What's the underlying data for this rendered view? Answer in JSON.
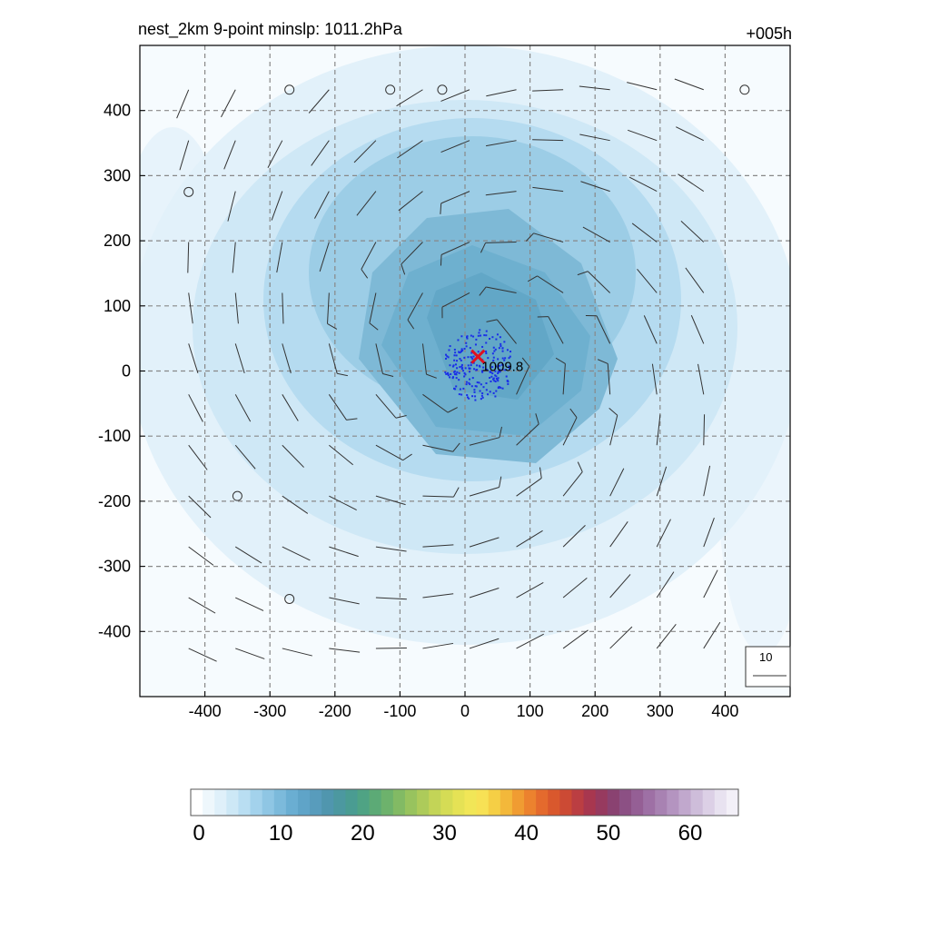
{
  "title_left": "nest_2km  9-point minslp: 1011.2hPa",
  "title_right": "+005h",
  "map": {
    "x_ticks": [
      -400,
      -300,
      -200,
      -100,
      0,
      100,
      200,
      300,
      400
    ],
    "y_ticks": [
      400,
      300,
      200,
      100,
      0,
      -100,
      -200,
      -300,
      -400
    ],
    "extent": [
      -500,
      500
    ],
    "center_marker": {
      "x": 20,
      "y": 22,
      "label": "1009.8",
      "color": "#e01020"
    },
    "contour_color": "#1a2ee8",
    "reference_vector_label": "10",
    "calm_points": [
      [
        -270,
        432
      ],
      [
        -115,
        432
      ],
      [
        -35,
        432
      ],
      [
        430,
        432
      ],
      [
        -425,
        275
      ],
      [
        -350,
        -192
      ],
      [
        -270,
        -350
      ]
    ]
  },
  "colorbar": {
    "tick_labels": [
      "0",
      "10",
      "20",
      "30",
      "40",
      "50",
      "60"
    ],
    "tick_values": [
      0,
      10,
      20,
      30,
      40,
      50,
      60
    ],
    "max": 67,
    "colors": [
      "#ffffff",
      "#eef7fc",
      "#dff0fa",
      "#cde8f6",
      "#b9def2",
      "#a3d2ec",
      "#8fc6e4",
      "#7cbadb",
      "#6aaed2",
      "#5fa4c8",
      "#589cbc",
      "#5096ae",
      "#4c98a0",
      "#4a9c92",
      "#4fa384",
      "#5caa76",
      "#6db26c",
      "#82ba64",
      "#98c35e",
      "#adcb5a",
      "#c3d457",
      "#d5dc55",
      "#e5e255",
      "#f1e657",
      "#f7e155",
      "#f5cf45",
      "#f3b83a",
      "#f09c32",
      "#ec822e",
      "#e46a2d",
      "#d9582d",
      "#cc4a34",
      "#bb3e42",
      "#a8374f",
      "#973a5f",
      "#8a4271",
      "#8c5084",
      "#955f95",
      "#9e70a5",
      "#a882b2",
      "#b494c0",
      "#c1a8cd",
      "#cebdda",
      "#dcd0e6",
      "#e8e2f0",
      "#f3f0f8"
    ]
  }
}
